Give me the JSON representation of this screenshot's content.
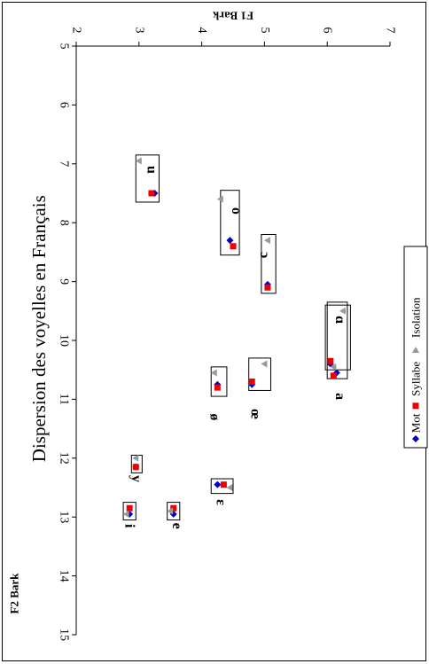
{
  "chart_data": {
    "type": "scatter",
    "title": "Dispersion des voyelles en Français",
    "xlabel": "F2 Bark",
    "ylabel": "F1 Bark",
    "x_ticks": [
      "5",
      "6",
      "7",
      "8",
      "9",
      "10",
      "11",
      "12",
      "13",
      "14",
      "15"
    ],
    "y_ticks": [
      "2",
      "3",
      "4",
      "5",
      "6",
      "7"
    ],
    "xlim": [
      5,
      15
    ],
    "ylim": [
      2,
      7
    ],
    "legend_position": "right",
    "series": [
      {
        "name": "Mot",
        "color": "#0000cc",
        "marker": "diamond",
        "points": [
          {
            "vowel": "u",
            "f2": 7.5,
            "f1": 3.25
          },
          {
            "vowel": "o",
            "f2": 8.3,
            "f1": 4.45
          },
          {
            "vowel": "ɔ",
            "f2": 9.05,
            "f1": 5.05
          },
          {
            "vowel": "ɑ",
            "f2": 10.4,
            "f1": 6.05
          },
          {
            "vowel": "a",
            "f2": 10.55,
            "f1": 6.15
          },
          {
            "vowel": "ø",
            "f2": 10.75,
            "f1": 4.25
          },
          {
            "vowel": "œ",
            "f2": 10.75,
            "f1": 4.8
          },
          {
            "vowel": "y",
            "f2": 12.15,
            "f1": 2.95
          },
          {
            "vowel": "ɛ",
            "f2": 12.45,
            "f1": 4.25
          },
          {
            "vowel": "i",
            "f2": 12.95,
            "f1": 2.85
          },
          {
            "vowel": "e",
            "f2": 12.95,
            "f1": 3.55
          }
        ]
      },
      {
        "name": "Syllabe",
        "color": "#ee0000",
        "marker": "square",
        "points": [
          {
            "vowel": "u",
            "f2": 7.5,
            "f1": 3.2
          },
          {
            "vowel": "o",
            "f2": 8.4,
            "f1": 4.5
          },
          {
            "vowel": "ɔ",
            "f2": 9.1,
            "f1": 5.05
          },
          {
            "vowel": "ɑ",
            "f2": 10.35,
            "f1": 6.05
          },
          {
            "vowel": "a",
            "f2": 10.6,
            "f1": 6.1
          },
          {
            "vowel": "ø",
            "f2": 10.8,
            "f1": 4.25
          },
          {
            "vowel": "œ",
            "f2": 10.7,
            "f1": 4.8
          },
          {
            "vowel": "y",
            "f2": 12.15,
            "f1": 2.95
          },
          {
            "vowel": "ɛ",
            "f2": 12.45,
            "f1": 4.35
          },
          {
            "vowel": "i",
            "f2": 12.85,
            "f1": 2.85
          },
          {
            "vowel": "e",
            "f2": 12.85,
            "f1": 3.55
          }
        ]
      },
      {
        "name": "Isolation",
        "color": "#999999",
        "marker": "triangle",
        "points": [
          {
            "vowel": "u",
            "f2": 6.95,
            "f1": 3.0
          },
          {
            "vowel": "o",
            "f2": 7.6,
            "f1": 4.3
          },
          {
            "vowel": "ɔ",
            "f2": 8.3,
            "f1": 5.05
          },
          {
            "vowel": "ɑ",
            "f2": 9.5,
            "f1": 6.25
          },
          {
            "vowel": "a",
            "f2": 10.45,
            "f1": 6.1
          },
          {
            "vowel": "ø",
            "f2": 10.55,
            "f1": 4.2
          },
          {
            "vowel": "œ",
            "f2": 10.4,
            "f1": 5.0
          },
          {
            "vowel": "y",
            "f2": 12.0,
            "f1": 2.95
          },
          {
            "vowel": "ɛ",
            "f2": 12.5,
            "f1": 4.45
          },
          {
            "vowel": "i",
            "f2": 12.95,
            "f1": 2.8
          },
          {
            "vowel": "e",
            "f2": 12.9,
            "f1": 3.5
          }
        ]
      }
    ],
    "vowel_boxes": [
      {
        "vowel": "u",
        "f2": [
          6.85,
          7.65
        ],
        "f1": [
          2.95,
          3.32
        ]
      },
      {
        "vowel": "o",
        "f2": [
          7.45,
          8.55
        ],
        "f1": [
          4.3,
          4.6
        ]
      },
      {
        "vowel": "ɔ",
        "f2": [
          8.2,
          9.2
        ],
        "f1": [
          4.95,
          5.18
        ]
      },
      {
        "vowel": "ɑ",
        "f2": [
          9.4,
          10.5
        ],
        "f1": [
          5.97,
          6.37
        ]
      },
      {
        "vowel": "a",
        "f2": [
          9.35,
          10.65
        ],
        "f1": [
          6.0,
          6.32
        ]
      },
      {
        "vowel": "ø",
        "f2": [
          10.45,
          10.95
        ],
        "f1": [
          4.15,
          4.4
        ]
      },
      {
        "vowel": "œ",
        "f2": [
          10.3,
          10.85
        ],
        "f1": [
          4.75,
          5.1
        ]
      },
      {
        "vowel": "y",
        "f2": [
          11.95,
          12.25
        ],
        "f1": [
          2.88,
          3.05
        ]
      },
      {
        "vowel": "ɛ",
        "f2": [
          12.35,
          12.6
        ],
        "f1": [
          4.15,
          4.5
        ]
      },
      {
        "vowel": "i",
        "f2": [
          12.75,
          13.05
        ],
        "f1": [
          2.75,
          2.95
        ]
      },
      {
        "vowel": "e",
        "f2": [
          12.75,
          13.05
        ],
        "f1": [
          3.45,
          3.65
        ]
      }
    ],
    "vowel_labels": [
      {
        "text": "u",
        "f2": 7.1,
        "f1": 3.2
      },
      {
        "text": "o",
        "f2": 7.8,
        "f1": 4.55
      },
      {
        "text": "ɔ",
        "f2": 8.55,
        "f1": 5.0
      },
      {
        "text": "ɑ",
        "f2": 9.65,
        "f1": 6.2
      },
      {
        "text": "a",
        "f2": 10.95,
        "f1": 6.2
      },
      {
        "text": "ø",
        "f2": 11.3,
        "f1": 4.2
      },
      {
        "text": "œ",
        "f2": 11.25,
        "f1": 4.85
      },
      {
        "text": "y",
        "f2": 12.35,
        "f1": 2.95
      },
      {
        "text": "ɛ",
        "f2": 12.75,
        "f1": 4.3
      },
      {
        "text": "i",
        "f2": 13.15,
        "f1": 2.85
      },
      {
        "text": "e",
        "f2": 13.15,
        "f1": 3.6
      }
    ]
  }
}
